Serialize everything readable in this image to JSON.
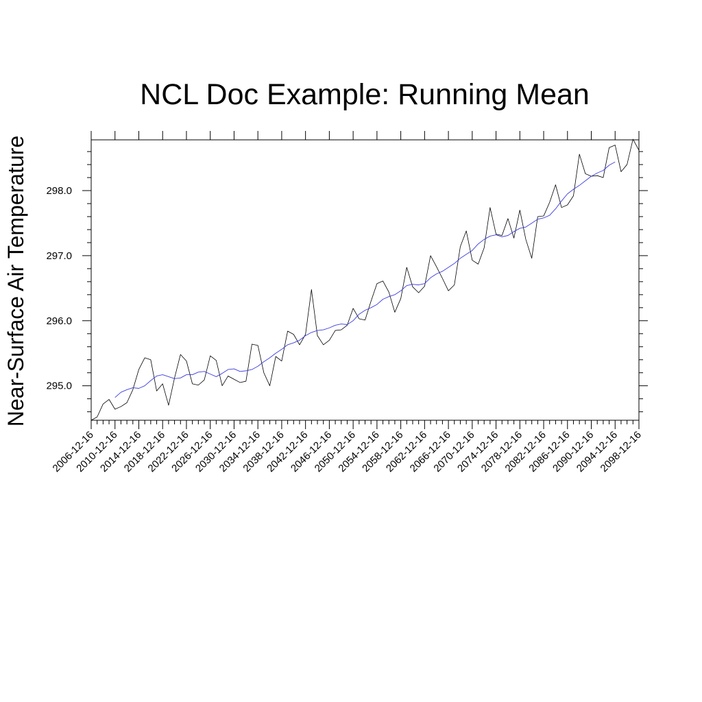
{
  "chart_data": {
    "type": "line",
    "title": "NCL Doc Example:  Running Mean",
    "ylabel": "Near-Surface Air Temperature",
    "xlabel": "",
    "x_tick_labels": [
      "2006-12-16",
      "2010-12-16",
      "2014-12-16",
      "2018-12-16",
      "2022-12-16",
      "2026-12-16",
      "2030-12-16",
      "2034-12-16",
      "2038-12-16",
      "2042-12-16",
      "2046-12-16",
      "2050-12-16",
      "2054-12-16",
      "2058-12-16",
      "2062-12-16",
      "2066-12-16",
      "2070-12-16",
      "2074-12-16",
      "2078-12-16",
      "2082-12-16",
      "2086-12-16",
      "2090-12-16",
      "2094-12-16",
      "2098-12-16"
    ],
    "y_tick_labels": [
      "295.0",
      "296.0",
      "297.0",
      "298.0"
    ],
    "xlim": [
      2006.96,
      2098.96
    ],
    "ylim": [
      294.47,
      298.78
    ],
    "grid": false,
    "series": [
      {
        "color": "#000000",
        "x": [
          2006.96,
          2007.96,
          2008.96,
          2009.96,
          2010.96,
          2011.96,
          2012.96,
          2013.96,
          2014.96,
          2015.96,
          2016.96,
          2017.96,
          2018.96,
          2019.96,
          2020.96,
          2021.96,
          2022.96,
          2023.96,
          2024.96,
          2025.96,
          2026.96,
          2027.96,
          2028.96,
          2029.96,
          2030.96,
          2031.96,
          2032.96,
          2033.96,
          2034.96,
          2035.96,
          2036.96,
          2037.96,
          2038.96,
          2039.96,
          2040.96,
          2041.96,
          2042.96,
          2043.96,
          2044.96,
          2045.96,
          2046.96,
          2047.96,
          2048.96,
          2049.96,
          2050.96,
          2051.96,
          2052.96,
          2053.96,
          2054.96,
          2055.96,
          2056.96,
          2057.96,
          2058.96,
          2059.96,
          2060.96,
          2061.96,
          2062.96,
          2063.96,
          2064.96,
          2065.96,
          2066.96,
          2067.96,
          2068.96,
          2069.96,
          2070.96,
          2071.96,
          2072.96,
          2073.96,
          2074.96,
          2075.96,
          2076.96,
          2077.96,
          2078.96,
          2079.96,
          2080.96,
          2081.96,
          2082.96,
          2083.96,
          2084.96,
          2085.96,
          2086.96,
          2087.96,
          2088.96,
          2089.96,
          2090.96,
          2091.96,
          2092.96,
          2093.96,
          2094.96,
          2095.96,
          2096.96,
          2097.96,
          2098.96
        ],
        "values": [
          294.47,
          294.52,
          294.72,
          294.79,
          294.64,
          294.68,
          294.74,
          294.94,
          295.25,
          295.43,
          295.4,
          294.92,
          295.03,
          294.7,
          295.12,
          295.48,
          295.38,
          295.03,
          295.01,
          295.09,
          295.46,
          295.39,
          295.0,
          295.15,
          295.1,
          295.05,
          295.07,
          295.64,
          295.62,
          295.2,
          295.0,
          295.45,
          295.38,
          295.84,
          295.79,
          295.63,
          295.79,
          296.48,
          295.77,
          295.63,
          295.7,
          295.85,
          295.86,
          295.93,
          296.19,
          296.03,
          296.01,
          296.3,
          296.57,
          296.61,
          296.44,
          296.13,
          296.34,
          296.82,
          296.52,
          296.43,
          296.53,
          297.0,
          296.83,
          296.65,
          296.46,
          296.55,
          297.14,
          297.38,
          296.93,
          296.87,
          297.12,
          297.74,
          297.33,
          297.31,
          297.57,
          297.27,
          297.7,
          297.25,
          296.96,
          297.6,
          297.61,
          297.82,
          298.09,
          297.74,
          297.78,
          297.92,
          298.56,
          298.26,
          298.22,
          298.23,
          298.2,
          298.66,
          298.7,
          298.29,
          298.4,
          298.79,
          298.62
        ]
      },
      {
        "color": "#3a3ae0",
        "x": [
          2010.96,
          2011.96,
          2012.96,
          2013.96,
          2014.96,
          2015.96,
          2016.96,
          2017.96,
          2018.96,
          2019.96,
          2020.96,
          2021.96,
          2022.96,
          2023.96,
          2024.96,
          2025.96,
          2026.96,
          2027.96,
          2028.96,
          2029.96,
          2030.96,
          2031.96,
          2032.96,
          2033.96,
          2034.96,
          2035.96,
          2036.96,
          2037.96,
          2038.96,
          2039.96,
          2040.96,
          2041.96,
          2042.96,
          2043.96,
          2044.96,
          2045.96,
          2046.96,
          2047.96,
          2048.96,
          2049.96,
          2050.96,
          2051.96,
          2052.96,
          2053.96,
          2054.96,
          2055.96,
          2056.96,
          2057.96,
          2058.96,
          2059.96,
          2060.96,
          2061.96,
          2062.96,
          2063.96,
          2064.96,
          2065.96,
          2066.96,
          2067.96,
          2068.96,
          2069.96,
          2070.96,
          2071.96,
          2072.96,
          2073.96,
          2074.96,
          2075.96,
          2076.96,
          2077.96,
          2078.96,
          2079.96,
          2080.96,
          2081.96,
          2082.96,
          2083.96,
          2084.96,
          2085.96,
          2086.96,
          2087.96,
          2088.96,
          2089.96,
          2090.96,
          2091.96,
          2092.96,
          2093.96,
          2094.96
        ],
        "values": [
          294.82,
          294.9,
          294.94,
          294.97,
          294.96,
          295.0,
          295.08,
          295.15,
          295.17,
          295.14,
          295.11,
          295.12,
          295.17,
          295.17,
          295.21,
          295.22,
          295.18,
          295.14,
          295.19,
          295.25,
          295.26,
          295.22,
          295.23,
          295.25,
          295.3,
          295.37,
          295.43,
          295.5,
          295.56,
          295.63,
          295.66,
          295.7,
          295.77,
          295.82,
          295.85,
          295.86,
          295.89,
          295.93,
          295.95,
          295.94,
          296.0,
          296.1,
          296.16,
          296.2,
          296.25,
          296.33,
          296.37,
          296.4,
          296.46,
          296.54,
          296.56,
          296.55,
          296.57,
          296.66,
          296.72,
          296.76,
          296.82,
          296.88,
          296.96,
          297.02,
          297.08,
          297.18,
          297.25,
          297.3,
          297.32,
          297.29,
          297.31,
          297.37,
          297.42,
          297.44,
          297.5,
          297.56,
          297.58,
          297.62,
          297.72,
          297.84,
          297.95,
          298.02,
          298.08,
          298.15,
          298.22,
          298.27,
          298.31,
          298.39,
          298.44
        ]
      }
    ]
  }
}
